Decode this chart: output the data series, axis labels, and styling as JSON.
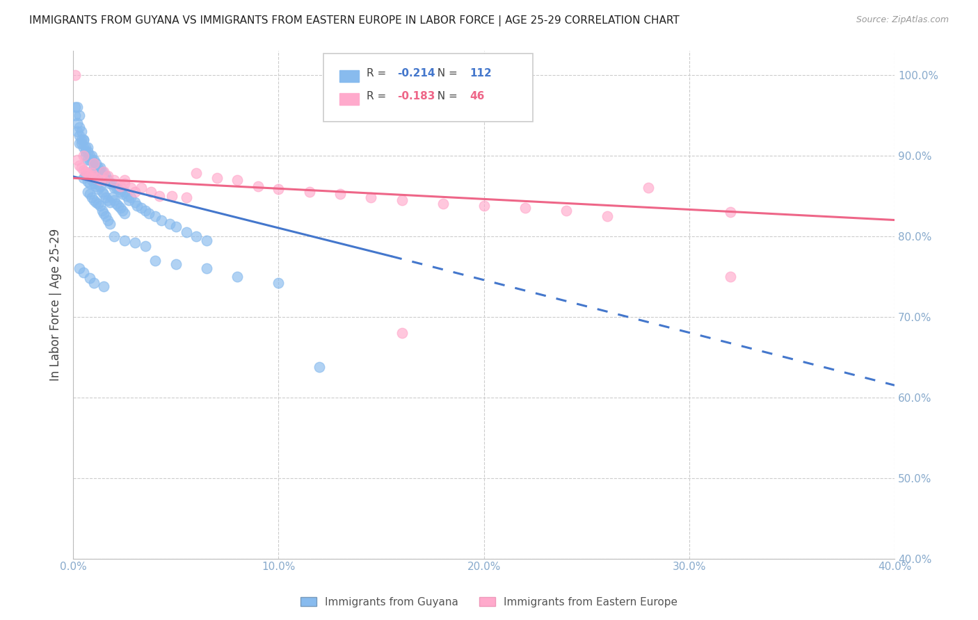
{
  "title": "IMMIGRANTS FROM GUYANA VS IMMIGRANTS FROM EASTERN EUROPE IN LABOR FORCE | AGE 25-29 CORRELATION CHART",
  "source": "Source: ZipAtlas.com",
  "ylabel": "In Labor Force | Age 25-29",
  "legend_label1": "Immigrants from Guyana",
  "legend_label2": "Immigrants from Eastern Europe",
  "R1": -0.214,
  "N1": 112,
  "R2": -0.183,
  "N2": 46,
  "color_blue": "#88BBEE",
  "color_pink": "#FFAACC",
  "color_blue_line": "#4477CC",
  "color_pink_line": "#EE6688",
  "color_axis": "#88AACC",
  "background": "#FFFFFF",
  "xlim": [
    0.0,
    0.4
  ],
  "ylim": [
    0.4,
    1.03
  ],
  "x_ticks": [
    0.0,
    0.1,
    0.2,
    0.3,
    0.4
  ],
  "y_ticks": [
    0.4,
    0.5,
    0.6,
    0.7,
    0.8,
    0.9,
    1.0
  ],
  "blue_x": [
    0.001,
    0.001,
    0.002,
    0.002,
    0.002,
    0.003,
    0.003,
    0.003,
    0.003,
    0.004,
    0.004,
    0.004,
    0.005,
    0.005,
    0.005,
    0.006,
    0.006,
    0.006,
    0.007,
    0.007,
    0.007,
    0.008,
    0.008,
    0.009,
    0.009,
    0.01,
    0.01,
    0.01,
    0.011,
    0.011,
    0.012,
    0.012,
    0.013,
    0.013,
    0.014,
    0.014,
    0.015,
    0.015,
    0.016,
    0.016,
    0.017,
    0.018,
    0.019,
    0.02,
    0.021,
    0.022,
    0.023,
    0.024,
    0.025,
    0.026,
    0.027,
    0.028,
    0.03,
    0.031,
    0.033,
    0.035,
    0.037,
    0.04,
    0.043,
    0.047,
    0.05,
    0.055,
    0.06,
    0.065,
    0.005,
    0.006,
    0.007,
    0.008,
    0.009,
    0.01,
    0.011,
    0.012,
    0.013,
    0.014,
    0.015,
    0.016,
    0.017,
    0.018,
    0.019,
    0.02,
    0.021,
    0.022,
    0.023,
    0.024,
    0.025,
    0.007,
    0.008,
    0.009,
    0.01,
    0.011,
    0.012,
    0.013,
    0.014,
    0.015,
    0.016,
    0.017,
    0.018,
    0.003,
    0.005,
    0.008,
    0.01,
    0.015,
    0.02,
    0.025,
    0.03,
    0.035,
    0.04,
    0.05,
    0.065,
    0.08,
    0.1,
    0.12
  ],
  "blue_y": [
    0.95,
    0.96,
    0.94,
    0.93,
    0.96,
    0.95,
    0.935,
    0.925,
    0.915,
    0.93,
    0.92,
    0.915,
    0.92,
    0.91,
    0.92,
    0.91,
    0.905,
    0.9,
    0.905,
    0.91,
    0.895,
    0.9,
    0.895,
    0.895,
    0.9,
    0.89,
    0.895,
    0.885,
    0.89,
    0.885,
    0.885,
    0.875,
    0.88,
    0.885,
    0.875,
    0.88,
    0.875,
    0.87,
    0.87,
    0.875,
    0.87,
    0.865,
    0.865,
    0.86,
    0.86,
    0.858,
    0.855,
    0.852,
    0.855,
    0.85,
    0.845,
    0.848,
    0.842,
    0.838,
    0.835,
    0.832,
    0.828,
    0.825,
    0.82,
    0.815,
    0.812,
    0.805,
    0.8,
    0.795,
    0.872,
    0.875,
    0.868,
    0.865,
    0.87,
    0.865,
    0.862,
    0.858,
    0.862,
    0.855,
    0.852,
    0.848,
    0.845,
    0.842,
    0.848,
    0.845,
    0.84,
    0.838,
    0.835,
    0.832,
    0.828,
    0.855,
    0.852,
    0.848,
    0.845,
    0.842,
    0.84,
    0.838,
    0.832,
    0.828,
    0.825,
    0.82,
    0.815,
    0.76,
    0.755,
    0.748,
    0.742,
    0.738,
    0.8,
    0.795,
    0.792,
    0.788,
    0.77,
    0.765,
    0.76,
    0.75,
    0.742,
    0.638
  ],
  "pink_x": [
    0.001,
    0.002,
    0.003,
    0.004,
    0.005,
    0.006,
    0.007,
    0.008,
    0.009,
    0.01,
    0.011,
    0.013,
    0.015,
    0.017,
    0.02,
    0.023,
    0.025,
    0.028,
    0.03,
    0.033,
    0.038,
    0.042,
    0.048,
    0.055,
    0.06,
    0.07,
    0.08,
    0.09,
    0.1,
    0.115,
    0.13,
    0.145,
    0.16,
    0.18,
    0.2,
    0.22,
    0.24,
    0.26,
    0.28,
    0.32,
    0.005,
    0.01,
    0.015,
    0.025,
    0.16,
    0.32
  ],
  "pink_y": [
    1.0,
    0.895,
    0.888,
    0.885,
    0.882,
    0.88,
    0.878,
    0.875,
    0.878,
    0.875,
    0.872,
    0.87,
    0.87,
    0.875,
    0.87,
    0.862,
    0.865,
    0.86,
    0.855,
    0.86,
    0.855,
    0.85,
    0.85,
    0.848,
    0.878,
    0.872,
    0.87,
    0.862,
    0.858,
    0.855,
    0.852,
    0.848,
    0.845,
    0.84,
    0.838,
    0.835,
    0.832,
    0.825,
    0.86,
    0.83,
    0.9,
    0.89,
    0.88,
    0.87,
    0.68,
    0.75
  ],
  "blue_line_x0": 0.0,
  "blue_line_y0": 0.874,
  "blue_line_x1": 0.155,
  "blue_line_y1": 0.775,
  "blue_line_dashed_x0": 0.155,
  "blue_line_dashed_y0": 0.775,
  "blue_line_dashed_x1": 0.4,
  "blue_line_dashed_y1": 0.615,
  "pink_line_x0": 0.0,
  "pink_line_y0": 0.872,
  "pink_line_x1": 0.4,
  "pink_line_y1": 0.82
}
